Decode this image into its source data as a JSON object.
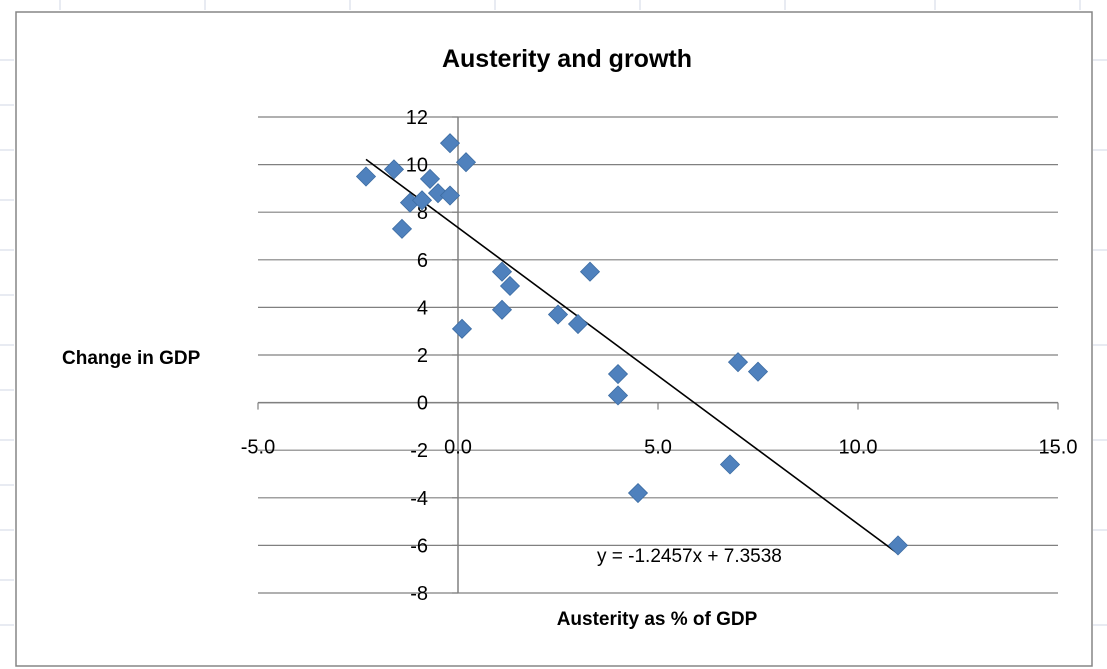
{
  "chart_data": {
    "type": "scatter",
    "title": "Austerity and growth",
    "xlabel": "Austerity as % of GDP",
    "ylabel": "Change in GDP",
    "xlim": [
      -5.0,
      15.0
    ],
    "ylim": [
      -8,
      12
    ],
    "x_ticks": [
      -5.0,
      0.0,
      5.0,
      10.0,
      15.0
    ],
    "x_tick_labels": [
      "-5.0",
      "0.0",
      "5.0",
      "10.0",
      "15.0"
    ],
    "y_ticks": [
      12,
      10,
      8,
      6,
      4,
      2,
      0,
      -2,
      -4,
      -6,
      -8
    ],
    "y_tick_labels": [
      "12",
      "10",
      "8",
      "6",
      "4",
      "2",
      "0",
      "-2",
      "-4",
      "-6",
      "-8"
    ],
    "grid": "horizontal",
    "legend": "none",
    "marker": "diamond",
    "marker_color": "#4f81bd",
    "series": [
      {
        "points": [
          {
            "x": -2.3,
            "y": 9.5
          },
          {
            "x": -1.6,
            "y": 9.8
          },
          {
            "x": -1.4,
            "y": 7.3
          },
          {
            "x": -1.2,
            "y": 8.4
          },
          {
            "x": -0.9,
            "y": 8.5
          },
          {
            "x": -0.7,
            "y": 9.4
          },
          {
            "x": -0.5,
            "y": 8.8
          },
          {
            "x": -0.2,
            "y": 8.7
          },
          {
            "x": -0.2,
            "y": 10.9
          },
          {
            "x": 0.2,
            "y": 10.1
          },
          {
            "x": 0.1,
            "y": 3.1
          },
          {
            "x": 1.1,
            "y": 5.5
          },
          {
            "x": 1.3,
            "y": 4.9
          },
          {
            "x": 1.1,
            "y": 3.9
          },
          {
            "x": 2.5,
            "y": 3.7
          },
          {
            "x": 3.0,
            "y": 3.3
          },
          {
            "x": 3.3,
            "y": 5.5
          },
          {
            "x": 4.0,
            "y": 1.2
          },
          {
            "x": 4.0,
            "y": 0.3
          },
          {
            "x": 4.5,
            "y": -3.8
          },
          {
            "x": 6.8,
            "y": -2.6
          },
          {
            "x": 7.0,
            "y": 1.7
          },
          {
            "x": 7.5,
            "y": 1.3
          },
          {
            "x": 11.0,
            "y": -6.0
          }
        ]
      }
    ],
    "trendline": {
      "type": "linear",
      "slope": -1.2457,
      "intercept": 7.3538,
      "x_range": [
        -2.3,
        11.0
      ],
      "label": "y = -1.2457x + 7.3538",
      "color": "#000000"
    },
    "gridline_color": "#808080",
    "axis_color": "#808080"
  }
}
